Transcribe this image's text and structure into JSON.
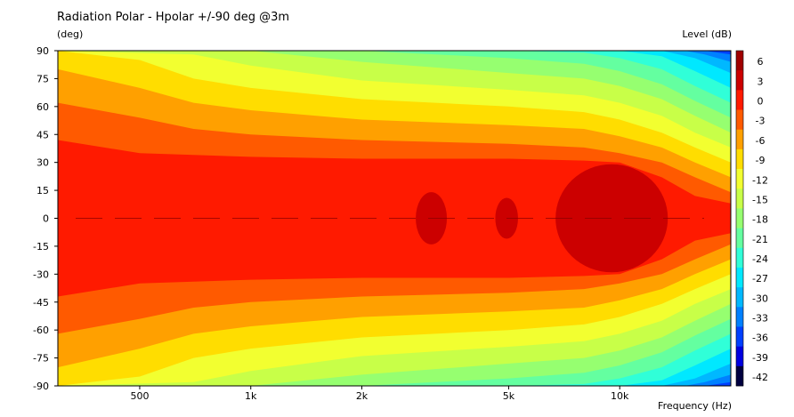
{
  "chart_data": {
    "type": "heatmap",
    "title": "Radiation Polar - Hpolar +/-90 deg @3m",
    "ylabel": "(deg)",
    "xlabel": "Frequency  (Hz)",
    "colorbar_label": "Level  (dB)",
    "x_scale": "log",
    "xlim": [
      300,
      20000
    ],
    "ylim": [
      -90,
      90
    ],
    "x_ticks": [
      {
        "value": 500,
        "label": "500"
      },
      {
        "value": 1000,
        "label": "1k"
      },
      {
        "value": 2000,
        "label": "2k"
      },
      {
        "value": 5000,
        "label": "5k"
      },
      {
        "value": 10000,
        "label": "10k"
      }
    ],
    "y_ticks": [
      90,
      75,
      60,
      45,
      30,
      15,
      0,
      -15,
      -30,
      -45,
      -60,
      -75,
      -90
    ],
    "colorbar": {
      "ticks": [
        6,
        3,
        0,
        -3,
        -6,
        -9,
        -12,
        -15,
        -18,
        -21,
        -24,
        -27,
        -30,
        -33,
        -36,
        -39,
        -42
      ],
      "bands": [
        {
          "from": 3,
          "to": 6,
          "color": "#a00000"
        },
        {
          "from": 0,
          "to": 3,
          "color": "#cc0000"
        },
        {
          "from": -3,
          "to": 0,
          "color": "#ff1a00"
        },
        {
          "from": -6,
          "to": -3,
          "color": "#ff5a00"
        },
        {
          "from": -9,
          "to": -6,
          "color": "#ffa000"
        },
        {
          "from": -12,
          "to": -9,
          "color": "#ffdd00"
        },
        {
          "from": -15,
          "to": -12,
          "color": "#f2ff30"
        },
        {
          "from": -18,
          "to": -15,
          "color": "#c8ff48"
        },
        {
          "from": -21,
          "to": -18,
          "color": "#96ff70"
        },
        {
          "from": -24,
          "to": -21,
          "color": "#64ffa0"
        },
        {
          "from": -27,
          "to": -24,
          "color": "#30ffd8"
        },
        {
          "from": -30,
          "to": -27,
          "color": "#00e8ff"
        },
        {
          "from": -33,
          "to": -30,
          "color": "#00b8ff"
        },
        {
          "from": -36,
          "to": -33,
          "color": "#0080ff"
        },
        {
          "from": -39,
          "to": -36,
          "color": "#0040ff"
        },
        {
          "from": -42,
          "to": -39,
          "color": "#0000e0"
        },
        {
          "from": -45,
          "to": -42,
          "color": "#000040"
        }
      ]
    },
    "contours": [
      {
        "level": -3,
        "series": [
          {
            "freq": 300,
            "angle": 42
          },
          {
            "freq": 500,
            "angle": 35
          },
          {
            "freq": 700,
            "angle": 34
          },
          {
            "freq": 1000,
            "angle": 33
          },
          {
            "freq": 2000,
            "angle": 32
          },
          {
            "freq": 5000,
            "angle": 32
          },
          {
            "freq": 8000,
            "angle": 31
          },
          {
            "freq": 10000,
            "angle": 30
          },
          {
            "freq": 13000,
            "angle": 22
          },
          {
            "freq": 16000,
            "angle": 12
          },
          {
            "freq": 20000,
            "angle": 8
          }
        ]
      },
      {
        "level": -6,
        "series": [
          {
            "freq": 300,
            "angle": 62
          },
          {
            "freq": 500,
            "angle": 54
          },
          {
            "freq": 700,
            "angle": 48
          },
          {
            "freq": 1000,
            "angle": 45
          },
          {
            "freq": 2000,
            "angle": 42
          },
          {
            "freq": 5000,
            "angle": 40
          },
          {
            "freq": 8000,
            "angle": 38
          },
          {
            "freq": 10000,
            "angle": 35
          },
          {
            "freq": 13000,
            "angle": 30
          },
          {
            "freq": 16000,
            "angle": 22
          },
          {
            "freq": 20000,
            "angle": 14
          }
        ]
      },
      {
        "level": -9,
        "series": [
          {
            "freq": 300,
            "angle": 80
          },
          {
            "freq": 500,
            "angle": 70
          },
          {
            "freq": 700,
            "angle": 62
          },
          {
            "freq": 1000,
            "angle": 58
          },
          {
            "freq": 2000,
            "angle": 53
          },
          {
            "freq": 5000,
            "angle": 50
          },
          {
            "freq": 8000,
            "angle": 48
          },
          {
            "freq": 10000,
            "angle": 44
          },
          {
            "freq": 13000,
            "angle": 38
          },
          {
            "freq": 16000,
            "angle": 30
          },
          {
            "freq": 20000,
            "angle": 22
          }
        ]
      },
      {
        "level": -12,
        "series": [
          {
            "freq": 300,
            "angle": 90
          },
          {
            "freq": 500,
            "angle": 85
          },
          {
            "freq": 700,
            "angle": 75
          },
          {
            "freq": 1000,
            "angle": 70
          },
          {
            "freq": 2000,
            "angle": 64
          },
          {
            "freq": 5000,
            "angle": 60
          },
          {
            "freq": 8000,
            "angle": 57
          },
          {
            "freq": 10000,
            "angle": 53
          },
          {
            "freq": 13000,
            "angle": 46
          },
          {
            "freq": 16000,
            "angle": 38
          },
          {
            "freq": 20000,
            "angle": 30
          }
        ]
      },
      {
        "level": -15,
        "series": [
          {
            "freq": 300,
            "angle": 90
          },
          {
            "freq": 700,
            "angle": 88
          },
          {
            "freq": 1000,
            "angle": 82
          },
          {
            "freq": 2000,
            "angle": 74
          },
          {
            "freq": 5000,
            "angle": 69
          },
          {
            "freq": 8000,
            "angle": 66
          },
          {
            "freq": 10000,
            "angle": 62
          },
          {
            "freq": 13000,
            "angle": 55
          },
          {
            "freq": 16000,
            "angle": 46
          },
          {
            "freq": 20000,
            "angle": 38
          }
        ]
      },
      {
        "level": -18,
        "series": [
          {
            "freq": 300,
            "angle": 90
          },
          {
            "freq": 1000,
            "angle": 90
          },
          {
            "freq": 2000,
            "angle": 84
          },
          {
            "freq": 5000,
            "angle": 78
          },
          {
            "freq": 8000,
            "angle": 75
          },
          {
            "freq": 10000,
            "angle": 71
          },
          {
            "freq": 13000,
            "angle": 64
          },
          {
            "freq": 16000,
            "angle": 55
          },
          {
            "freq": 20000,
            "angle": 46
          }
        ]
      },
      {
        "level": -21,
        "series": [
          {
            "freq": 300,
            "angle": 90
          },
          {
            "freq": 2000,
            "angle": 90
          },
          {
            "freq": 5000,
            "angle": 86
          },
          {
            "freq": 8000,
            "angle": 83
          },
          {
            "freq": 10000,
            "angle": 79
          },
          {
            "freq": 13000,
            "angle": 72
          },
          {
            "freq": 16000,
            "angle": 63
          },
          {
            "freq": 20000,
            "angle": 54
          }
        ]
      },
      {
        "level": -24,
        "series": [
          {
            "freq": 300,
            "angle": 90
          },
          {
            "freq": 5000,
            "angle": 90
          },
          {
            "freq": 8000,
            "angle": 89
          },
          {
            "freq": 10000,
            "angle": 86
          },
          {
            "freq": 13000,
            "angle": 80
          },
          {
            "freq": 16000,
            "angle": 71
          },
          {
            "freq": 20000,
            "angle": 62
          }
        ]
      },
      {
        "level": -27,
        "series": [
          {
            "freq": 300,
            "angle": 90
          },
          {
            "freq": 10000,
            "angle": 90
          },
          {
            "freq": 13000,
            "angle": 87
          },
          {
            "freq": 16000,
            "angle": 79
          },
          {
            "freq": 20000,
            "angle": 70
          }
        ]
      },
      {
        "level": -30,
        "series": [
          {
            "freq": 300,
            "angle": 90
          },
          {
            "freq": 13000,
            "angle": 90
          },
          {
            "freq": 16000,
            "angle": 86
          },
          {
            "freq": 20000,
            "angle": 78
          }
        ]
      },
      {
        "level": -33,
        "series": [
          {
            "freq": 300,
            "angle": 90
          },
          {
            "freq": 15000,
            "angle": 90
          },
          {
            "freq": 17000,
            "angle": 88
          },
          {
            "freq": 20000,
            "angle": 84
          }
        ]
      },
      {
        "level": -36,
        "series": [
          {
            "freq": 300,
            "angle": 90
          },
          {
            "freq": 17000,
            "angle": 90
          },
          {
            "freq": 20000,
            "angle": 88
          }
        ]
      }
    ],
    "hotspots": [
      {
        "level": 0,
        "freq_range": [
          2800,
          3400
        ],
        "angle_range": [
          -14,
          14
        ]
      },
      {
        "level": 0,
        "freq_range": [
          4600,
          5300
        ],
        "angle_range": [
          -11,
          11
        ]
      },
      {
        "level": 0,
        "freq_range": [
          6700,
          13500
        ],
        "angle_range": [
          -29,
          29
        ]
      }
    ]
  }
}
